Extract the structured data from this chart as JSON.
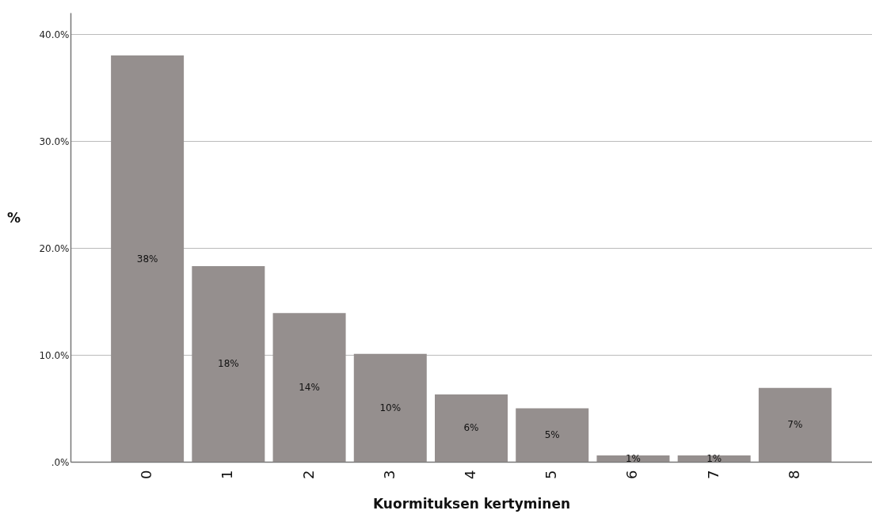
{
  "chart_data": {
    "type": "bar",
    "xlabel": "Kuormituksen kertyminen",
    "ylabel": "%",
    "categories": [
      "0",
      "1",
      "2",
      "3",
      "4",
      "5",
      "6",
      "7",
      "8"
    ],
    "values": [
      38.0,
      18.3,
      13.9,
      10.1,
      6.3,
      5.0,
      0.6,
      0.6,
      6.9
    ],
    "value_labels": [
      "38%",
      "18%",
      "14%",
      "10%",
      "6%",
      "5%",
      "1%",
      "1%",
      "7%"
    ],
    "color": "#958f8e",
    "ylim": [
      0,
      42
    ],
    "yticks": [
      {
        "value": 0,
        "label": ".0%"
      },
      {
        "value": 10,
        "label": "10.0%"
      },
      {
        "value": 20,
        "label": "20.0%"
      },
      {
        "value": 30,
        "label": "30.0%"
      },
      {
        "value": 40,
        "label": "40.0%"
      }
    ],
    "grid": "y"
  }
}
